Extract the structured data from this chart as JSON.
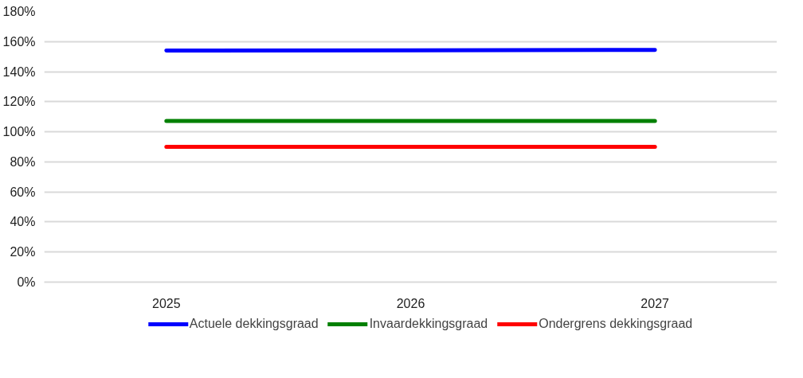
{
  "chart_data": {
    "type": "line",
    "categories": [
      "2025",
      "2026",
      "2027"
    ],
    "series": [
      {
        "name": "Actuele dekkingsgraad",
        "color": "#0000ff",
        "values": [
          154,
          154.2,
          154.5
        ]
      },
      {
        "name": "Invaardekkingsgraad",
        "color": "#008000",
        "values": [
          107.2,
          107.2,
          107.2
        ]
      },
      {
        "name": "Ondergrens dekkingsgraad",
        "color": "#ff0000",
        "values": [
          90,
          90,
          90
        ]
      }
    ],
    "ylim": [
      0,
      180
    ],
    "yticks": [
      {
        "value": 0,
        "label": "0%"
      },
      {
        "value": 20,
        "label": "20%"
      },
      {
        "value": 40,
        "label": "40%"
      },
      {
        "value": 60,
        "label": "60%"
      },
      {
        "value": 80,
        "label": "80%"
      },
      {
        "value": 100,
        "label": "100%"
      },
      {
        "value": 120,
        "label": "120%"
      },
      {
        "value": 140,
        "label": "140%"
      },
      {
        "value": 160,
        "label": "160%"
      },
      {
        "value": 180,
        "label": "180%"
      }
    ],
    "grid": "y",
    "legend": "bottom",
    "marker": "none",
    "line_style": "solid"
  }
}
